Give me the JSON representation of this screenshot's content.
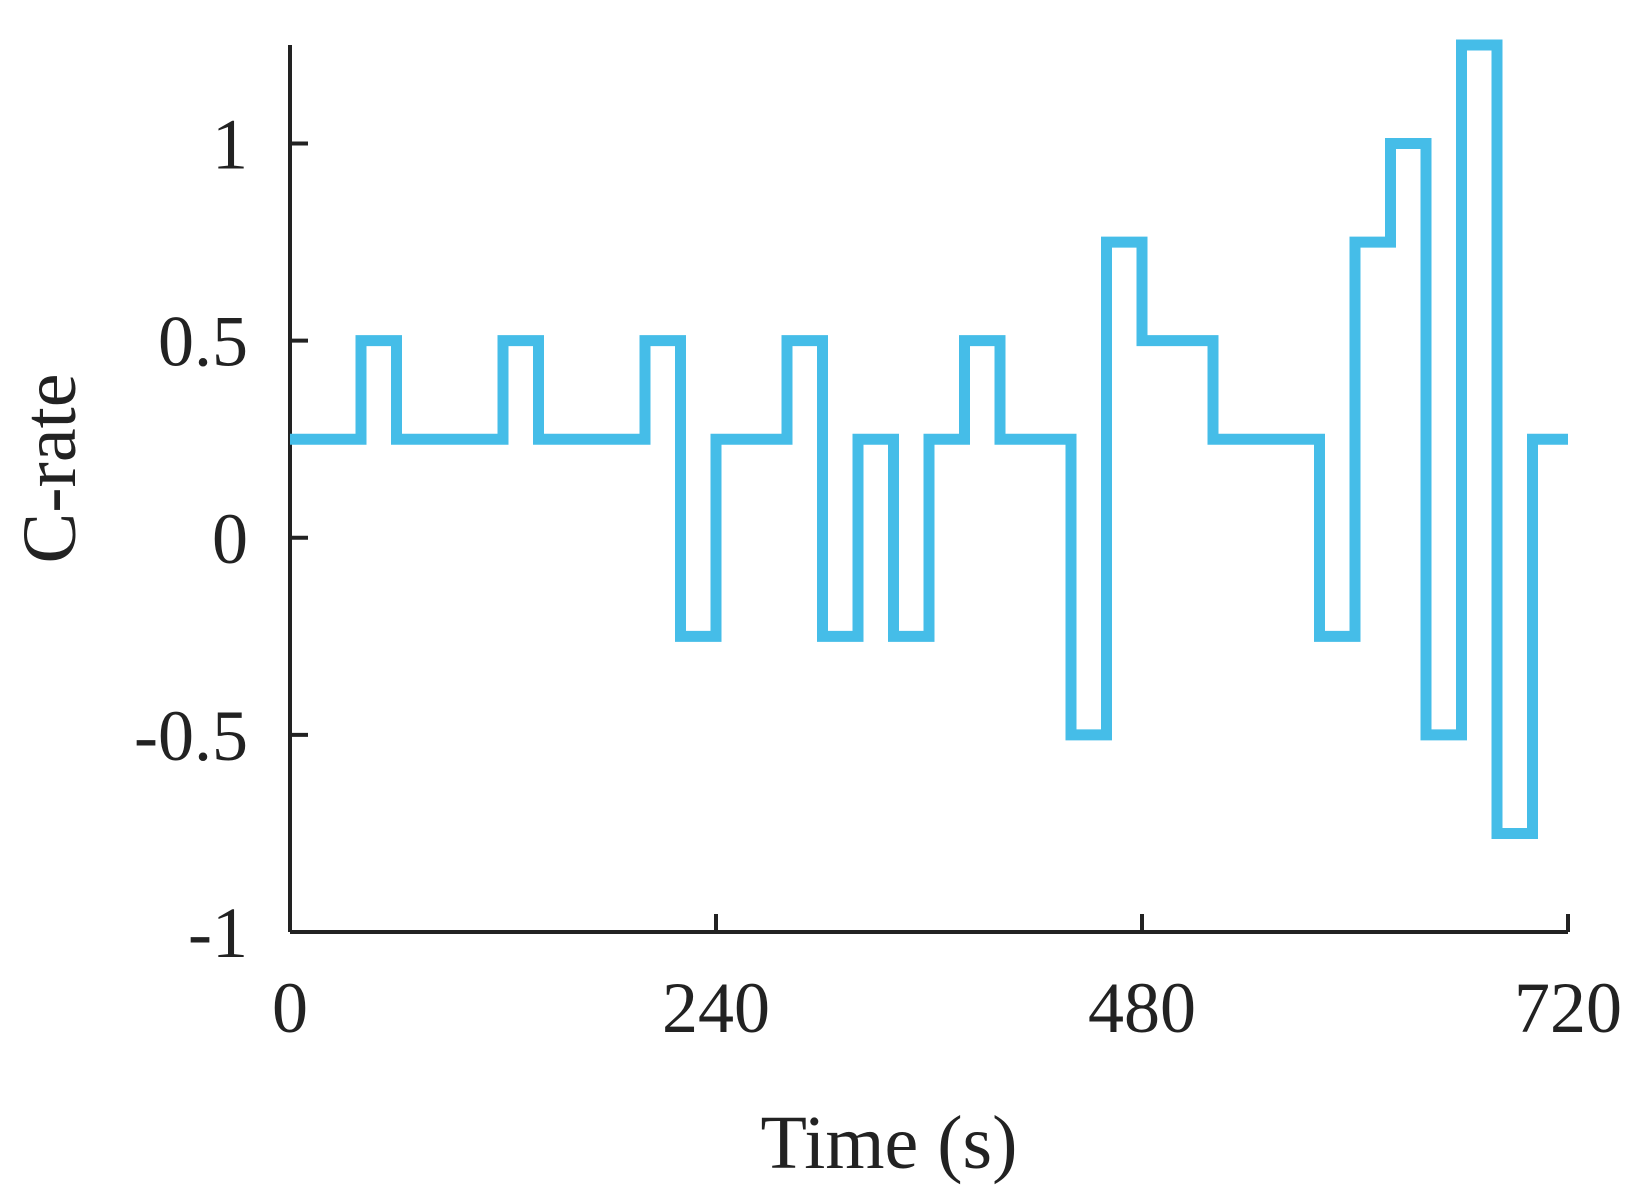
{
  "chart_data": {
    "type": "line",
    "step": true,
    "xlabel": "Time  (s)",
    "ylabel": "C-rate",
    "xlim": [
      0,
      720
    ],
    "ylim": [
      -1,
      1.25
    ],
    "xticks": [
      0,
      240,
      480,
      720
    ],
    "xtick_labels": [
      "0",
      "240",
      "480",
      "720"
    ],
    "yticks": [
      -1,
      -0.5,
      0,
      0.5,
      1
    ],
    "ytick_labels": [
      "-1",
      "-0.5",
      "0",
      "0.5",
      "1"
    ],
    "grid": false,
    "legend": "none",
    "series": [
      {
        "color": "#45bde8",
        "x": [
          0,
          40,
          40,
          60,
          60,
          120,
          120,
          140,
          140,
          200,
          200,
          220,
          220,
          240,
          240,
          280,
          280,
          300,
          300,
          320,
          320,
          340,
          340,
          360,
          360,
          380,
          380,
          400,
          400,
          440,
          440,
          460,
          460,
          480,
          480,
          520,
          520,
          580,
          580,
          600,
          600,
          620,
          620,
          640,
          640,
          660,
          660,
          680,
          680,
          700,
          700,
          720
        ],
        "y": [
          0.25,
          0.25,
          0.5,
          0.5,
          0.25,
          0.25,
          0.5,
          0.5,
          0.25,
          0.25,
          0.5,
          0.5,
          -0.25,
          -0.25,
          0.25,
          0.25,
          0.5,
          0.5,
          -0.25,
          -0.25,
          0.25,
          0.25,
          -0.25,
          -0.25,
          0.25,
          0.25,
          0.5,
          0.5,
          0.25,
          0.25,
          -0.5,
          -0.5,
          0.75,
          0.75,
          0.5,
          0.5,
          0.25,
          0.25,
          -0.25,
          -0.25,
          0.75,
          0.75,
          1,
          1,
          -0.5,
          -0.5,
          1.25,
          1.25,
          -0.75,
          -0.75,
          0.25,
          0.25
        ]
      }
    ]
  }
}
